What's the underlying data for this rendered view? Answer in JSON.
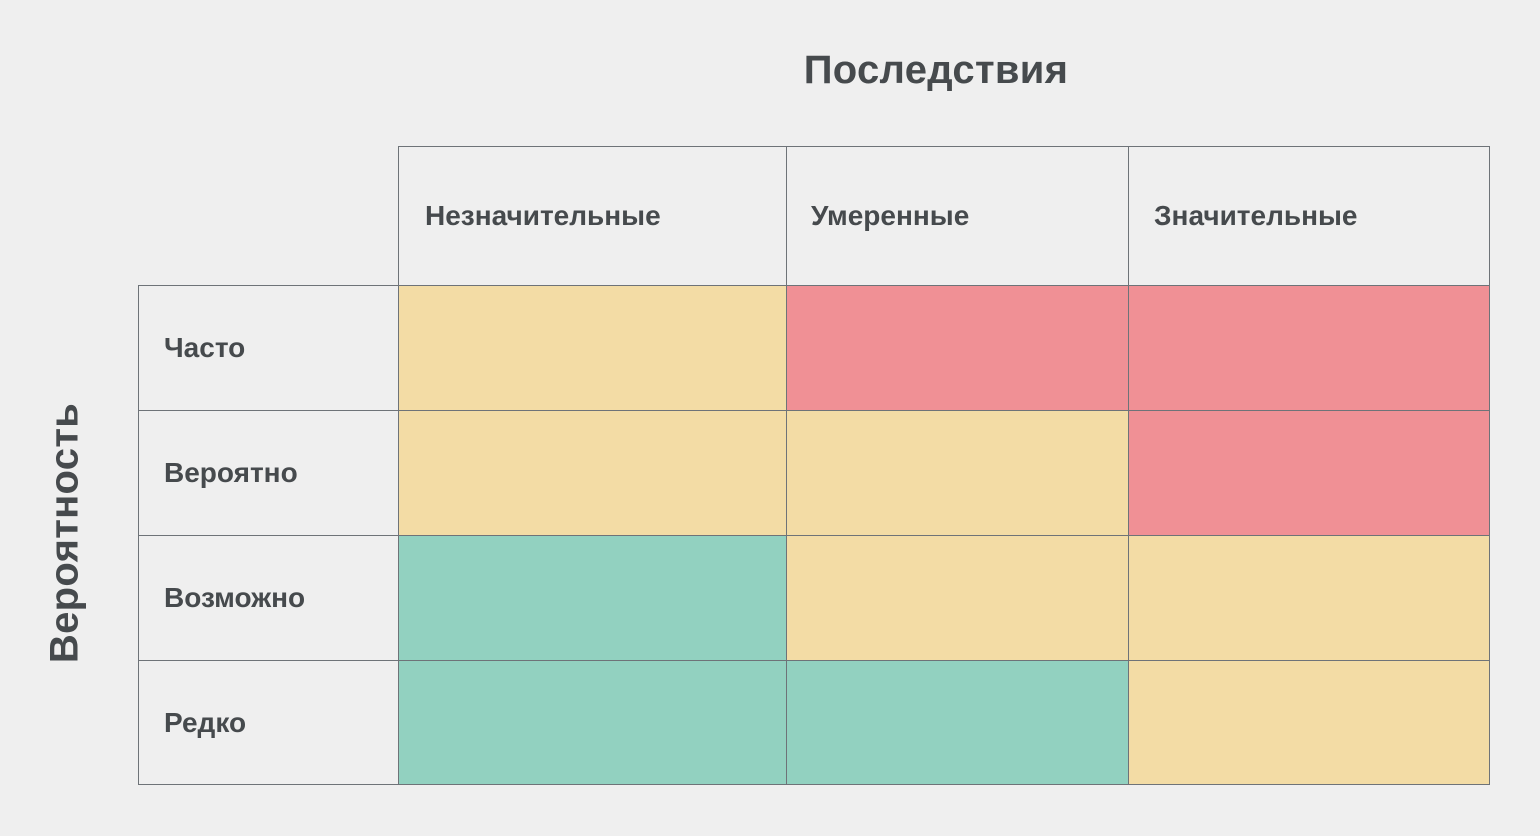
{
  "titles": {
    "consequences": "Последствия",
    "probability": "Вероятность"
  },
  "columns": [
    {
      "label": "Незначительные"
    },
    {
      "label": "Умеренные"
    },
    {
      "label": "Значительные"
    }
  ],
  "rows": [
    {
      "label": "Часто",
      "levels": [
        "medium",
        "high",
        "high"
      ]
    },
    {
      "label": "Вероятно",
      "levels": [
        "medium",
        "medium",
        "high"
      ]
    },
    {
      "label": "Возможно",
      "levels": [
        "low",
        "medium",
        "medium"
      ]
    },
    {
      "label": "Редко",
      "levels": [
        "low",
        "low",
        "medium"
      ]
    }
  ],
  "colors": {
    "low": "#92d1c0",
    "medium": "#f3dca5",
    "high": "#f09095",
    "background": "#efefef",
    "text": "#464a4d",
    "border": "#6e7378"
  }
}
